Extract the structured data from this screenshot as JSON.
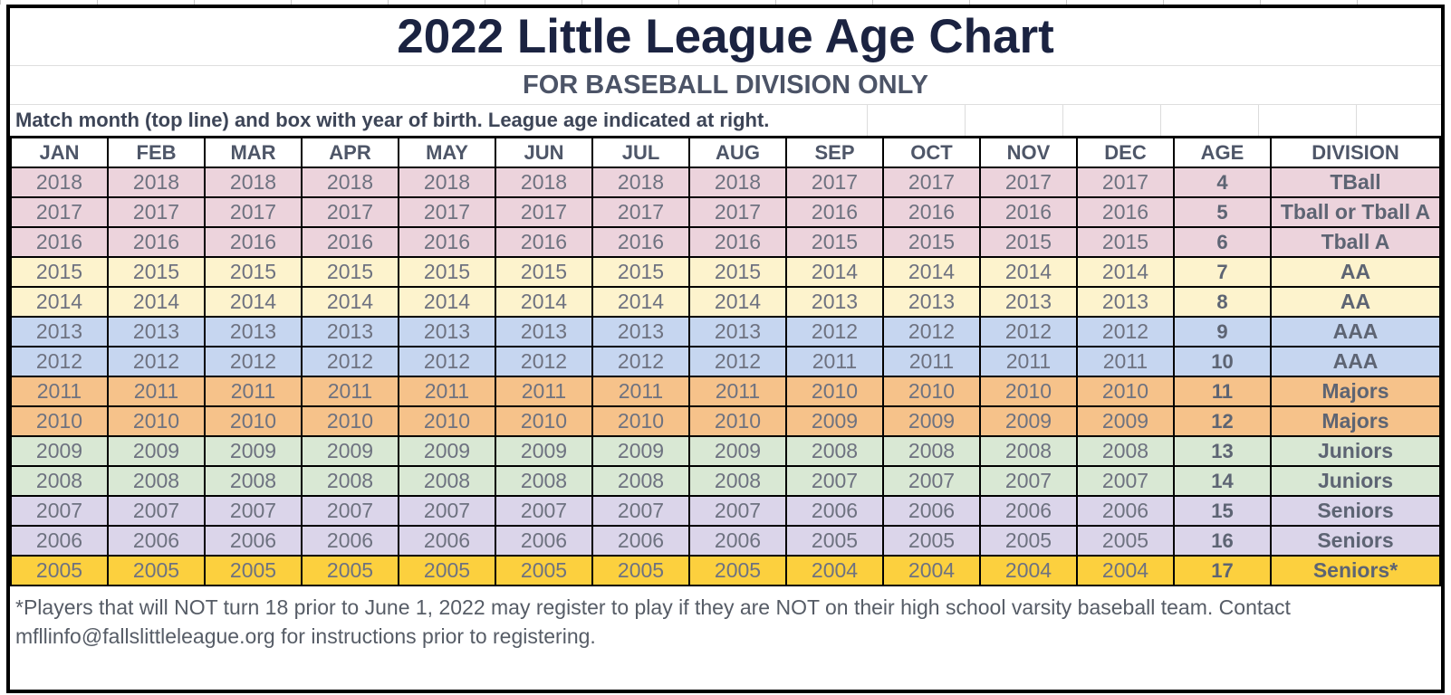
{
  "header": {
    "title": "2022 Little League Age Chart",
    "subtitle": "FOR BASEBALL DIVISION ONLY",
    "instruction": "Match month (top line) and box with year of birth. League age indicated at right."
  },
  "palette": {
    "tball_pink": "#ecd3dc",
    "aa_yellow": "#fdf3cd",
    "aaa_blue": "#c6d6f0",
    "majors_orange": "#f6c28a",
    "juniors_green": "#d9e8d4",
    "seniors_purple": "#dbd5ea",
    "seniors_gold": "#fcd03e",
    "border_black": "#000000",
    "title_navy": "#1b2341",
    "text_gray": "#6e7280"
  },
  "table": {
    "columns": [
      "JAN",
      "FEB",
      "MAR",
      "APR",
      "MAY",
      "JUN",
      "JUL",
      "AUG",
      "SEP",
      "OCT",
      "NOV",
      "DEC",
      "AGE",
      "DIVISION"
    ],
    "rows": [
      {
        "jan_aug_year": "2018",
        "sep_dec_year": "2017",
        "age": "4",
        "division": "TBall",
        "color": "#ecd3dc"
      },
      {
        "jan_aug_year": "2017",
        "sep_dec_year": "2016",
        "age": "5",
        "division": "Tball or Tball A",
        "color": "#ecd3dc"
      },
      {
        "jan_aug_year": "2016",
        "sep_dec_year": "2015",
        "age": "6",
        "division": "Tball A",
        "color": "#ecd3dc"
      },
      {
        "jan_aug_year": "2015",
        "sep_dec_year": "2014",
        "age": "7",
        "division": "AA",
        "color": "#fdf3cd"
      },
      {
        "jan_aug_year": "2014",
        "sep_dec_year": "2013",
        "age": "8",
        "division": "AA",
        "color": "#fdf3cd"
      },
      {
        "jan_aug_year": "2013",
        "sep_dec_year": "2012",
        "age": "9",
        "division": "AAA",
        "color": "#c6d6f0"
      },
      {
        "jan_aug_year": "2012",
        "sep_dec_year": "2011",
        "age": "10",
        "division": "AAA",
        "color": "#c6d6f0"
      },
      {
        "jan_aug_year": "2011",
        "sep_dec_year": "2010",
        "age": "11",
        "division": "Majors",
        "color": "#f6c28a"
      },
      {
        "jan_aug_year": "2010",
        "sep_dec_year": "2009",
        "age": "12",
        "division": "Majors",
        "color": "#f6c28a"
      },
      {
        "jan_aug_year": "2009",
        "sep_dec_year": "2008",
        "age": "13",
        "division": "Juniors",
        "color": "#d9e8d4"
      },
      {
        "jan_aug_year": "2008",
        "sep_dec_year": "2007",
        "age": "14",
        "division": "Juniors",
        "color": "#d9e8d4"
      },
      {
        "jan_aug_year": "2007",
        "sep_dec_year": "2006",
        "age": "15",
        "division": "Seniors",
        "color": "#dbd5ea"
      },
      {
        "jan_aug_year": "2006",
        "sep_dec_year": "2005",
        "age": "16",
        "division": "Seniors",
        "color": "#dbd5ea"
      },
      {
        "jan_aug_year": "2005",
        "sep_dec_year": "2004",
        "age": "17",
        "division": "Seniors*",
        "color": "#fcd03e"
      }
    ]
  },
  "footer": {
    "line1": "*Players that will NOT turn 18 prior to June 1, 2022 may register to play if they are NOT on their high school varsity baseball team.  Contact",
    "line2": "mfllinfo@fallslittleleague.org for instructions prior to registering."
  }
}
